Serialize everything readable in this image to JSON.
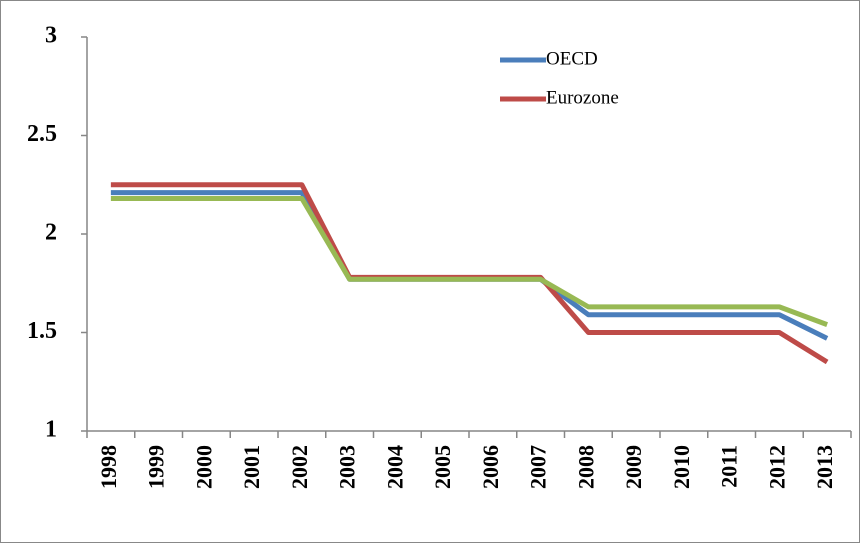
{
  "chart_data": {
    "type": "line",
    "categories": [
      "1998",
      "1999",
      "2000",
      "2001",
      "2002",
      "2003",
      "2004",
      "2005",
      "2006",
      "2007",
      "2008",
      "2009",
      "2010",
      "2011",
      "2012",
      "2013"
    ],
    "series": [
      {
        "name": "OECD",
        "color": "#4a7ebb",
        "values": [
          2.21,
          2.21,
          2.21,
          2.21,
          2.21,
          1.77,
          1.77,
          1.77,
          1.77,
          1.77,
          1.59,
          1.59,
          1.59,
          1.59,
          1.59,
          1.47
        ]
      },
      {
        "name": "Eurozone",
        "color": "#be4b48",
        "values": [
          2.25,
          2.25,
          2.25,
          2.25,
          2.25,
          1.78,
          1.78,
          1.78,
          1.78,
          1.78,
          1.5,
          1.5,
          1.5,
          1.5,
          1.5,
          1.35
        ]
      },
      {
        "color": "#98b954",
        "values": [
          2.18,
          2.18,
          2.18,
          2.18,
          2.18,
          1.77,
          1.77,
          1.77,
          1.77,
          1.77,
          1.63,
          1.63,
          1.63,
          1.63,
          1.63,
          1.54
        ]
      }
    ],
    "ylim": [
      1,
      3
    ],
    "yticks": [
      1,
      1.5,
      2,
      2.5,
      3
    ],
    "grid": false,
    "legend": "top-right"
  }
}
